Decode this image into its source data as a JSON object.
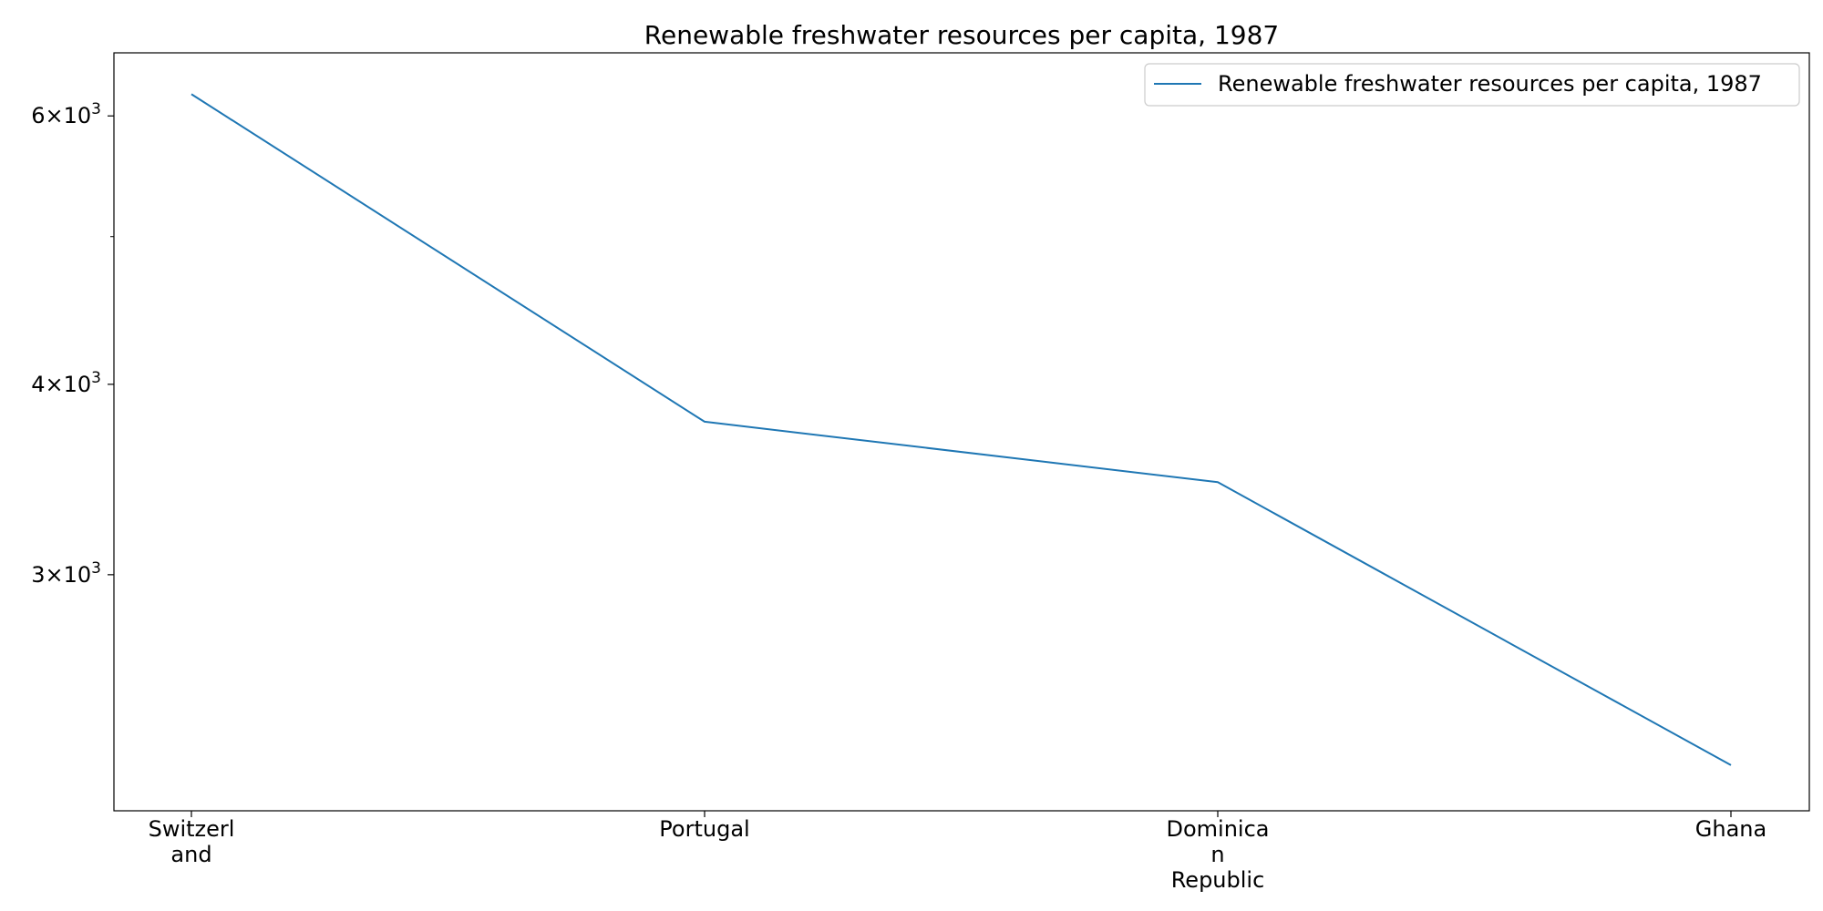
{
  "chart_data": {
    "type": "line",
    "title": "Renewable freshwater resources per capita, 1987",
    "xlabel": "",
    "ylabel": "",
    "categories": [
      [
        "Switzerl",
        "and"
      ],
      [
        "Portugal"
      ],
      [
        "Dominica",
        "n",
        "Republic"
      ],
      [
        "Ghana"
      ]
    ],
    "series": [
      {
        "name": "Renewable freshwater resources per capita, 1987",
        "values": [
          6200,
          3780,
          3450,
          2250
        ]
      }
    ],
    "yscale": "log",
    "ylim": [
      2100,
      6600
    ],
    "yticks": [
      {
        "value": 6000,
        "base": "6",
        "exp": "3"
      },
      {
        "value": 4000,
        "base": "4",
        "exp": "3"
      },
      {
        "value": 3000,
        "base": "3",
        "exp": "3"
      }
    ],
    "yminor_ticks": [
      5000
    ],
    "grid": false,
    "legend_position": "top-right",
    "colors": {
      "series": "#1f77b4",
      "axis": "#000000"
    }
  }
}
